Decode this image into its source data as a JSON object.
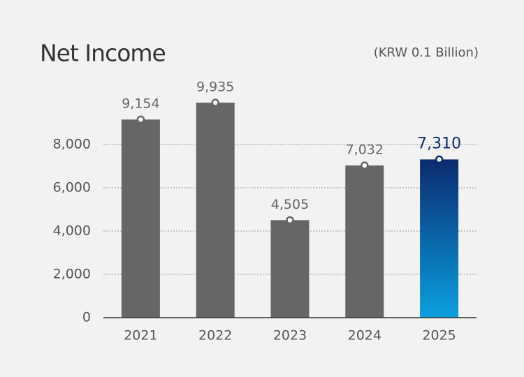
{
  "chart_data": {
    "type": "bar",
    "title": "Net Income",
    "subtitle": "(KRW 0.1 Billion)",
    "categories": [
      "2021",
      "2022",
      "2023",
      "2024",
      "2025"
    ],
    "values": [
      9154,
      9935,
      4505,
      7032,
      7310
    ],
    "value_labels": [
      "9,154",
      "9,935",
      "4,505",
      "7,032",
      "7,310"
    ],
    "colors": [
      "#666666",
      "#666666",
      "#666666",
      "#666666",
      "#0b2a6f"
    ],
    "gradient_end_colors": [
      null,
      null,
      null,
      null,
      "#0aa0e0"
    ],
    "ylim": [
      0,
      10000
    ],
    "yticks": [
      0,
      {
        "value": 2000,
        "label": "2,000"
      },
      {
        "value": 4000,
        "label": "4,000"
      },
      {
        "value": 6000,
        "label": "6,000"
      },
      {
        "value": 8000,
        "label": "8,000"
      }
    ],
    "grid": true
  }
}
